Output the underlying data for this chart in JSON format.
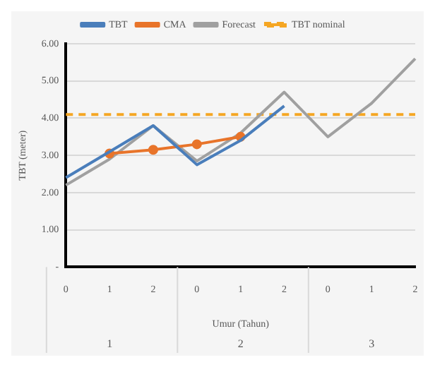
{
  "chart_data": {
    "type": "line",
    "xlabel": "Umur (Tahun)",
    "ylabel": "TBT (meter)",
    "categories": [
      "0",
      "1",
      "2",
      "0",
      "1",
      "2",
      "0",
      "1",
      "2"
    ],
    "annotations": [
      "1",
      "2",
      "3"
    ],
    "series": [
      {
        "name": "TBT",
        "color": "#4a7ebb",
        "values": [
          2.4,
          3.1,
          3.8,
          2.75,
          3.4,
          4.33,
          null,
          null,
          null
        ]
      },
      {
        "name": "CMA",
        "color": "#e8742a",
        "values": [
          null,
          3.05,
          3.15,
          3.3,
          3.5,
          null,
          null,
          null,
          null
        ],
        "marker": "circle"
      },
      {
        "name": "Forecast",
        "color": "#a0a0a0",
        "values": [
          2.2,
          2.9,
          3.8,
          2.85,
          3.6,
          4.7,
          3.5,
          4.4,
          5.6
        ]
      },
      {
        "name": "TBT nominal",
        "color": "#f5a623",
        "values": [
          4.1,
          4.1,
          4.1,
          4.1,
          4.1,
          4.1,
          4.1,
          4.1,
          4.1
        ],
        "line_style": "dashed"
      }
    ],
    "ylim": [
      0,
      6
    ],
    "yticks": [
      {
        "value": 0,
        "label": "-"
      },
      {
        "value": 1,
        "label": "1.00"
      },
      {
        "value": 2,
        "label": "2.00"
      },
      {
        "value": 3,
        "label": "3.00"
      },
      {
        "value": 4,
        "label": "4.00"
      },
      {
        "value": 5,
        "label": "5.00"
      },
      {
        "value": 6,
        "label": "6.00"
      }
    ],
    "grid": "y",
    "legend": "top",
    "marker": "none"
  }
}
